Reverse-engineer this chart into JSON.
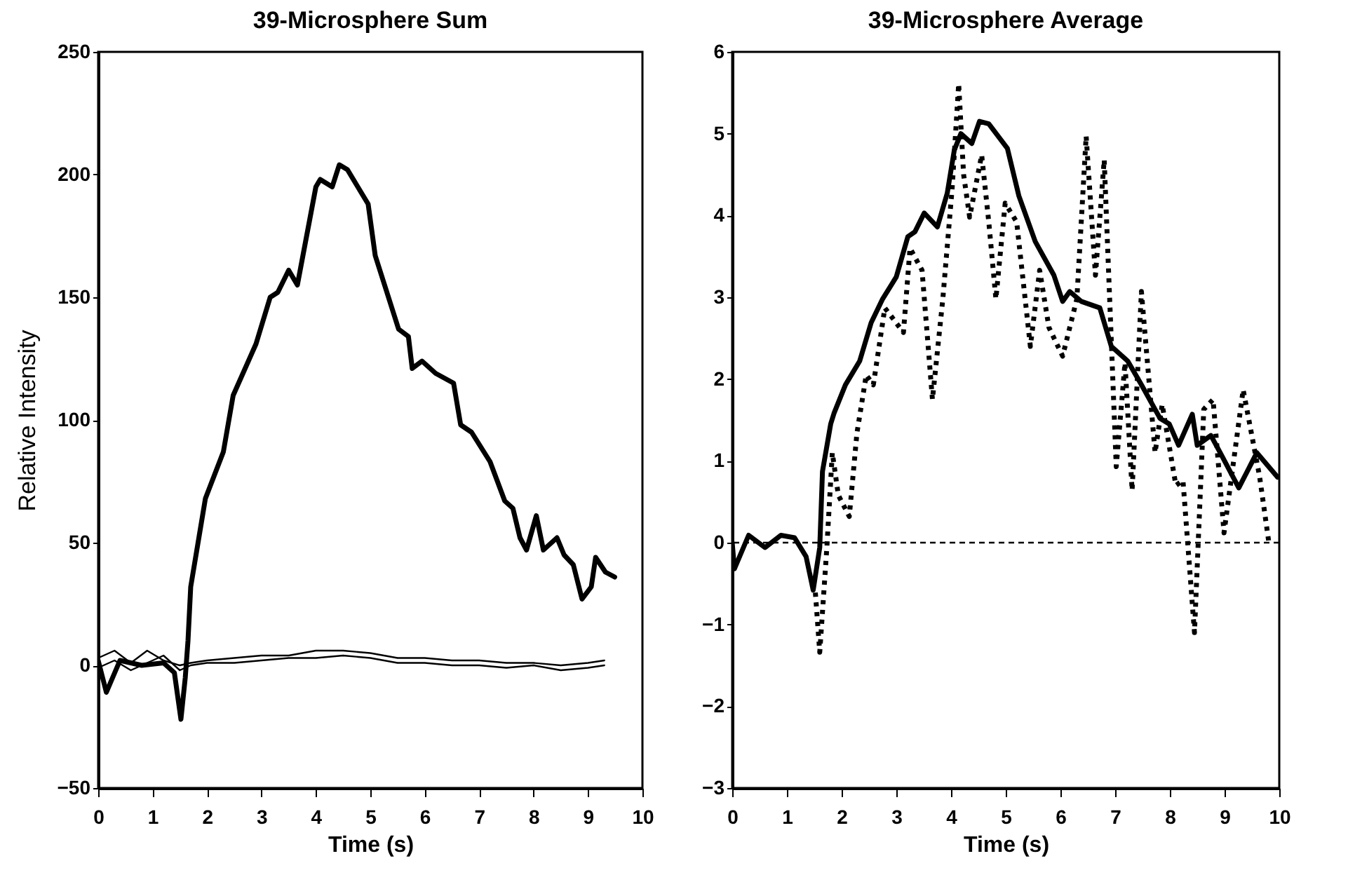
{
  "chart_data": [
    {
      "type": "line",
      "title": "39-Microsphere Sum",
      "xlabel": "Time (s)",
      "ylabel": "Relative Intensity",
      "xlim": [
        0,
        10
      ],
      "xticks": [
        0,
        1,
        2,
        3,
        4,
        5,
        6,
        7,
        8,
        9,
        10
      ],
      "ylim": [
        -50,
        250
      ],
      "yticks": [
        -50,
        0,
        50,
        100,
        150,
        200,
        250
      ],
      "grid": false,
      "line_style": "solid",
      "series": [
        {
          "color": "#000000",
          "x": [
            0,
            0.3,
            0.6,
            0.9,
            1.2,
            1.5,
            1.7,
            2,
            2.5,
            3,
            3.5,
            4,
            4.5,
            5,
            5.5,
            6,
            6.5,
            7,
            7.5,
            8,
            8.5,
            9,
            9.3
          ],
          "values": [
            3,
            6,
            1,
            6,
            2,
            0,
            1,
            2,
            3,
            4,
            4,
            6,
            6,
            5,
            3,
            3,
            2,
            2,
            1,
            1,
            0,
            1,
            2
          ]
        },
        {
          "color": "#000000",
          "x": [
            0,
            0.3,
            0.6,
            0.9,
            1.2,
            1.5,
            1.7,
            2,
            2.5,
            3,
            3.5,
            4,
            4.5,
            5,
            5.5,
            6,
            6.5,
            7,
            7.5,
            8,
            8.5,
            9,
            9.3
          ],
          "values": [
            -1,
            2,
            -2,
            1,
            4,
            -2,
            0,
            1,
            1,
            2,
            3,
            3,
            4,
            3,
            1,
            1,
            0,
            0,
            -1,
            0,
            -2,
            -1,
            0
          ]
        },
        {
          "color": "#000000",
          "x": [
            0,
            0.15,
            0.4,
            0.8,
            1.2,
            1.4,
            1.52,
            1.6,
            1.65,
            1.7,
            1.97,
            2.3,
            2.48,
            2.9,
            3.16,
            3.3,
            3.5,
            3.66,
            4.0,
            4.08,
            4.3,
            4.43,
            4.58,
            4.96,
            5.09,
            5.52,
            5.7,
            5.77,
            5.95,
            6.2,
            6.53,
            6.66,
            6.86,
            7.2,
            7.47,
            7.62,
            7.75,
            7.87,
            8.05,
            8.18,
            8.43,
            8.56,
            8.73,
            8.89,
            9.06,
            9.14,
            9.32,
            9.49
          ],
          "values": [
            2,
            -11,
            2,
            0,
            1,
            -3,
            -22,
            -5,
            10,
            32,
            68,
            87,
            110,
            131,
            150,
            152,
            161,
            155,
            195,
            198,
            195,
            204,
            202,
            188,
            167,
            137,
            134,
            121,
            124,
            119,
            115,
            98,
            95,
            83,
            67,
            64,
            52,
            47,
            61,
            47,
            52,
            45,
            41,
            27,
            32,
            44,
            38,
            36
          ]
        }
      ]
    },
    {
      "type": "line",
      "title": "39-Microsphere Average",
      "xlabel": "Time (s)",
      "xlim": [
        0,
        10
      ],
      "xticks": [
        0,
        1,
        2,
        3,
        4,
        5,
        6,
        7,
        8,
        9,
        10
      ],
      "ylim": [
        -3,
        6
      ],
      "yticks": [
        -3,
        -2,
        -1,
        0,
        1,
        2,
        3,
        4,
        5,
        6
      ],
      "grid": false,
      "ref_lines": [
        {
          "axis": "y",
          "value": 0,
          "color": "#000000",
          "line_style": "dashed"
        }
      ],
      "series": [
        {
          "color": "#000000",
          "line_style": "solid",
          "x": [
            0,
            0.04,
            0.3,
            0.6,
            0.89,
            1.14,
            1.35,
            1.48,
            1.6,
            1.65,
            1.8,
            1.86,
            2.07,
            2.33,
            2.54,
            2.75,
            3.0,
            3.21,
            3.34,
            3.51,
            3.75,
            3.93,
            4.06,
            4.18,
            4.38,
            4.52,
            4.69,
            5.03,
            5.24,
            5.54,
            5.88,
            6.04,
            6.17,
            6.38,
            6.72,
            6.93,
            7.23,
            7.48,
            7.82,
            7.99,
            8.16,
            8.41,
            8.5,
            8.75,
            8.92,
            9.26,
            9.59,
            9.97
          ],
          "values": [
            0,
            -0.32,
            0.09,
            -0.06,
            0.09,
            0.06,
            -0.17,
            -0.58,
            -0.06,
            0.87,
            1.45,
            1.58,
            1.93,
            2.22,
            2.69,
            2.98,
            3.25,
            3.74,
            3.8,
            4.03,
            3.86,
            4.27,
            4.8,
            5.0,
            4.88,
            5.15,
            5.12,
            4.82,
            4.24,
            3.68,
            3.27,
            2.95,
            3.07,
            2.95,
            2.87,
            2.4,
            2.22,
            1.93,
            1.52,
            1.45,
            1.19,
            1.57,
            1.19,
            1.31,
            1.1,
            0.67,
            1.1,
            0.8
          ]
        },
        {
          "color": "#000000",
          "line_style": "dotted",
          "x": [
            1.52,
            1.6,
            1.73,
            1.83,
            1.94,
            2.14,
            2.28,
            2.45,
            2.58,
            2.79,
            3.13,
            3.25,
            3.47,
            3.66,
            3.85,
            4.02,
            4.14,
            4.23,
            4.34,
            4.56,
            4.69,
            4.82,
            4.99,
            5.2,
            5.45,
            5.62,
            5.79,
            6.04,
            6.3,
            6.47,
            6.64,
            6.8,
            7.02,
            7.18,
            7.31,
            7.48,
            7.73,
            7.86,
            8.11,
            8.24,
            8.45,
            8.62,
            8.79,
            8.99,
            9.34,
            9.64,
            9.81
          ],
          "values": [
            -0.61,
            -1.34,
            -0.06,
            1.1,
            0.58,
            0.32,
            1.34,
            2.05,
            1.93,
            2.87,
            2.57,
            3.6,
            3.33,
            1.75,
            2.98,
            4.33,
            5.61,
            4.5,
            3.98,
            4.74,
            3.92,
            2.98,
            4.15,
            3.92,
            2.4,
            3.33,
            2.63,
            2.28,
            2.98,
            4.97,
            3.27,
            4.68,
            0.93,
            2.2,
            0.64,
            3.07,
            1.1,
            1.69,
            0.7,
            0.76,
            -1.1,
            1.63,
            1.75,
            0.12,
            1.87,
            0.81,
            0.0
          ]
        }
      ]
    }
  ]
}
